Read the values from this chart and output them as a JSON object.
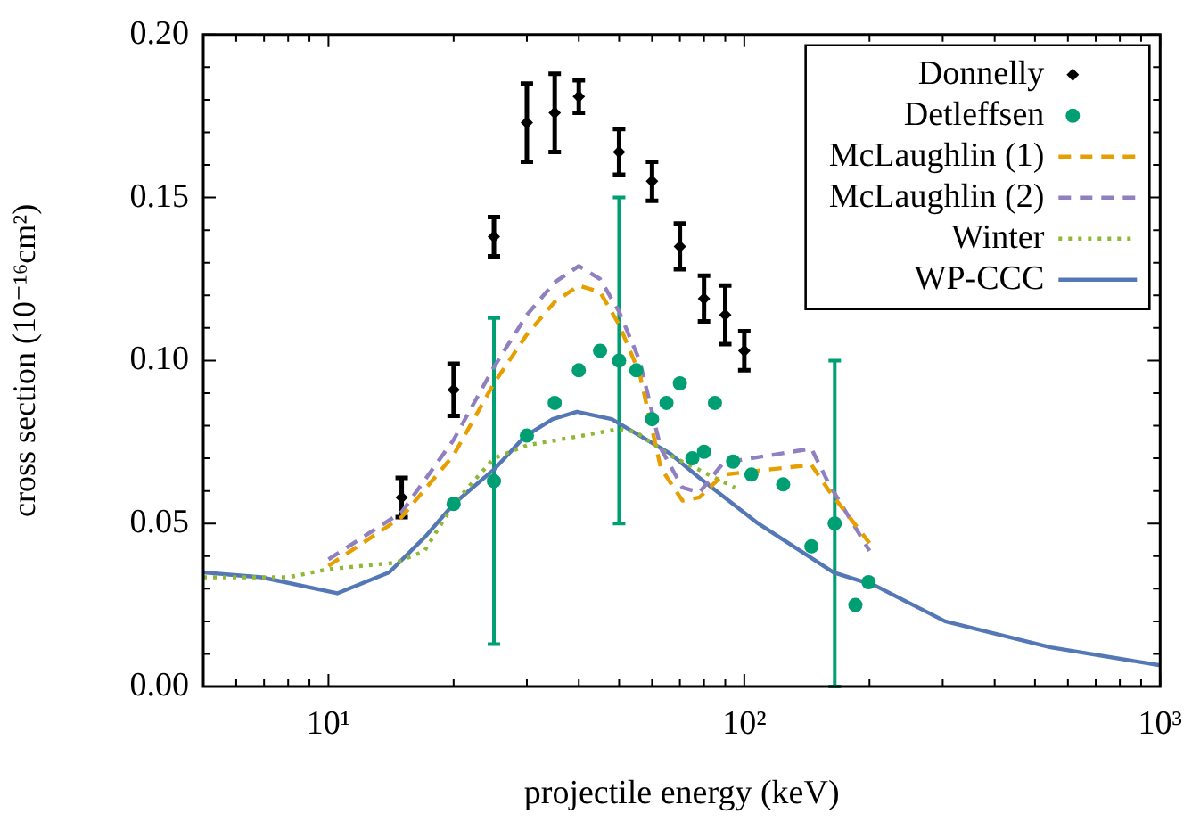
{
  "chart_data": {
    "type": "scatter",
    "xlabel": "projectile energy (keV)",
    "ylabel": "cross section (10⁻¹⁶cm²)",
    "log": "x",
    "xlim": [
      5,
      1000
    ],
    "ylim": [
      0,
      0.2
    ],
    "xticks": [
      {
        "value": 6,
        "label": null
      },
      {
        "value": 7,
        "label": null
      },
      {
        "value": 8,
        "label": null
      },
      {
        "value": 9,
        "label": null
      },
      {
        "value": 10,
        "label": "10¹"
      },
      {
        "value": 20,
        "label": null
      },
      {
        "value": 30,
        "label": null
      },
      {
        "value": 40,
        "label": null
      },
      {
        "value": 50,
        "label": null
      },
      {
        "value": 60,
        "label": null
      },
      {
        "value": 70,
        "label": null
      },
      {
        "value": 80,
        "label": null
      },
      {
        "value": 90,
        "label": null
      },
      {
        "value": 100,
        "label": "10²"
      },
      {
        "value": 200,
        "label": null
      },
      {
        "value": 300,
        "label": null
      },
      {
        "value": 400,
        "label": null
      },
      {
        "value": 500,
        "label": null
      },
      {
        "value": 600,
        "label": null
      },
      {
        "value": 700,
        "label": null
      },
      {
        "value": 800,
        "label": null
      },
      {
        "value": 900,
        "label": null
      },
      {
        "value": 1000,
        "label": "10³"
      }
    ],
    "yticks": [
      {
        "value": 0,
        "label": "0.00"
      },
      {
        "value": 0.01,
        "label": null
      },
      {
        "value": 0.02,
        "label": null
      },
      {
        "value": 0.03,
        "label": null
      },
      {
        "value": 0.04,
        "label": null
      },
      {
        "value": 0.05,
        "label": "0.05"
      },
      {
        "value": 0.06,
        "label": null
      },
      {
        "value": 0.07,
        "label": null
      },
      {
        "value": 0.08,
        "label": null
      },
      {
        "value": 0.09,
        "label": null
      },
      {
        "value": 0.1,
        "label": "0.10"
      },
      {
        "value": 0.11,
        "label": null
      },
      {
        "value": 0.12,
        "label": null
      },
      {
        "value": 0.13,
        "label": null
      },
      {
        "value": 0.14,
        "label": null
      },
      {
        "value": 0.15,
        "label": "0.15"
      },
      {
        "value": 0.16,
        "label": null
      },
      {
        "value": 0.17,
        "label": null
      },
      {
        "value": 0.18,
        "label": null
      },
      {
        "value": 0.19,
        "label": null
      },
      {
        "value": 0.2,
        "label": "0.20"
      }
    ],
    "grid": false,
    "legend": "top right",
    "series": [
      {
        "name": "Donnelly",
        "marker": "diamond",
        "color": "#000000",
        "x": [
          15,
          20,
          25,
          30,
          35,
          40,
          50,
          60,
          70,
          80,
          90,
          100
        ],
        "values": [
          0.058,
          0.091,
          0.138,
          0.173,
          0.176,
          0.181,
          0.164,
          0.155,
          0.135,
          0.119,
          0.114,
          0.103
        ],
        "errors": [
          0.006,
          0.008,
          0.006,
          0.012,
          0.012,
          0.005,
          0.007,
          0.006,
          0.007,
          0.007,
          0.009,
          0.006
        ]
      },
      {
        "name": "Detleffsen",
        "marker": "circle",
        "color": "#009e73",
        "x": [
          20,
          25,
          30,
          35,
          40,
          45,
          50,
          55,
          60,
          65,
          70,
          75,
          80,
          85,
          94,
          104,
          124,
          145,
          165,
          185,
          199
        ],
        "values": [
          0.056,
          0.063,
          0.077,
          0.087,
          0.097,
          0.103,
          0.1,
          0.097,
          0.082,
          0.087,
          0.093,
          0.07,
          0.072,
          0.087,
          0.069,
          0.065,
          0.062,
          0.043,
          0.05,
          0.025,
          0.032
        ],
        "errors": [
          null,
          0.05,
          null,
          null,
          null,
          null,
          0.05,
          null,
          null,
          null,
          null,
          null,
          null,
          null,
          null,
          null,
          null,
          null,
          0.05,
          null,
          null
        ]
      },
      {
        "name": "McLaughlin (1)",
        "type": "line",
        "line_style": "dashed",
        "color": "#e69f00",
        "x": [
          10,
          15,
          20,
          25,
          30,
          35,
          40,
          45,
          50,
          56,
          63,
          71,
          78,
          89,
          145,
          160,
          200
        ],
        "values": [
          0.037,
          0.052,
          0.071,
          0.093,
          0.108,
          0.118,
          0.123,
          0.121,
          0.111,
          0.096,
          0.067,
          0.057,
          0.058,
          0.065,
          0.068,
          0.06,
          0.044
        ]
      },
      {
        "name": "McLaughlin (2)",
        "type": "line",
        "line_style": "dashed",
        "color": "#9180c0",
        "x": [
          10,
          15,
          20,
          25,
          30,
          35,
          40,
          45,
          50,
          56,
          63,
          71,
          78,
          89,
          145,
          160,
          200
        ],
        "values": [
          0.039,
          0.0535,
          0.0757,
          0.098,
          0.114,
          0.124,
          0.129,
          0.125,
          0.115,
          0.1,
          0.073,
          0.061,
          0.0595,
          0.0686,
          0.073,
          0.062,
          0.0416
        ]
      },
      {
        "name": "Winter",
        "type": "line",
        "line_style": "dotted",
        "color": "#8fb935",
        "x": [
          5,
          8,
          10,
          14.5,
          17,
          20,
          25,
          30,
          41,
          50,
          55,
          66,
          95
        ],
        "values": [
          0.0335,
          0.0335,
          0.036,
          0.038,
          0.0415,
          0.056,
          0.07,
          0.074,
          0.077,
          0.079,
          0.078,
          0.071,
          0.061
        ]
      },
      {
        "name": "WP-CCC",
        "type": "line",
        "line_style": "solid",
        "color": "#5477b5",
        "x": [
          5,
          6.9,
          10.5,
          14,
          17.1,
          20,
          25.2,
          29.6,
          34.6,
          39.6,
          48,
          66.4,
          78,
          108,
          164,
          206,
          304,
          545,
          1000
        ],
        "values": [
          0.035,
          0.0335,
          0.0286,
          0.035,
          0.046,
          0.056,
          0.067,
          0.0766,
          0.082,
          0.0843,
          0.082,
          0.0714,
          0.064,
          0.05,
          0.035,
          0.031,
          0.02,
          0.012,
          0.0065
        ]
      }
    ]
  }
}
